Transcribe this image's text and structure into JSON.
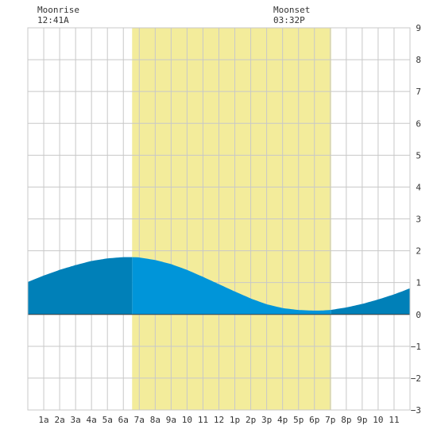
{
  "moon": {
    "rise_title": "Moonrise",
    "rise_time": "12:41A",
    "rise_hour": 0.68,
    "set_title": "Moonset",
    "set_time": "03:32P",
    "set_hour": 15.53
  },
  "chart_data": {
    "type": "area",
    "xlim": [
      0,
      24
    ],
    "ylim": [
      -3,
      9
    ],
    "x_ticks": [
      {
        "x": 1,
        "label": "1a"
      },
      {
        "x": 2,
        "label": "2a"
      },
      {
        "x": 3,
        "label": "3a"
      },
      {
        "x": 4,
        "label": "4a"
      },
      {
        "x": 5,
        "label": "5a"
      },
      {
        "x": 6,
        "label": "6a"
      },
      {
        "x": 7,
        "label": "7a"
      },
      {
        "x": 8,
        "label": "8a"
      },
      {
        "x": 9,
        "label": "9a"
      },
      {
        "x": 10,
        "label": "10"
      },
      {
        "x": 11,
        "label": "11"
      },
      {
        "x": 12,
        "label": "12"
      },
      {
        "x": 13,
        "label": "1p"
      },
      {
        "x": 14,
        "label": "2p"
      },
      {
        "x": 15,
        "label": "3p"
      },
      {
        "x": 16,
        "label": "4p"
      },
      {
        "x": 17,
        "label": "5p"
      },
      {
        "x": 18,
        "label": "6p"
      },
      {
        "x": 19,
        "label": "7p"
      },
      {
        "x": 20,
        "label": "8p"
      },
      {
        "x": 21,
        "label": "9p"
      },
      {
        "x": 22,
        "label": "10"
      },
      {
        "x": 23,
        "label": "11"
      }
    ],
    "y_ticks": [
      {
        "y": 9,
        "label": "9"
      },
      {
        "y": 8,
        "label": "8"
      },
      {
        "y": 7,
        "label": "7"
      },
      {
        "y": 6,
        "label": "6"
      },
      {
        "y": 5,
        "label": "5"
      },
      {
        "y": 4,
        "label": "4"
      },
      {
        "y": 3,
        "label": "3"
      },
      {
        "y": 2,
        "label": "2"
      },
      {
        "y": 1,
        "label": "1"
      },
      {
        "y": 0,
        "label": "0"
      },
      {
        "y": -1,
        "label": "−1"
      },
      {
        "y": -2,
        "label": "−2"
      },
      {
        "y": -3,
        "label": "−3"
      }
    ],
    "daylight": {
      "start": 6.55,
      "end": 19.05
    },
    "tide": {
      "high": {
        "x": 6.5,
        "y": 1.8
      },
      "low": {
        "x": 18.3,
        "y": 0.12
      },
      "x": [
        0,
        1,
        2,
        3,
        4,
        5,
        6,
        6.5,
        7,
        8,
        9,
        10,
        11,
        12,
        13,
        14,
        15,
        16,
        17,
        18,
        18.3,
        19,
        20,
        21,
        22,
        23,
        24
      ],
      "y": [
        1.02,
        1.22,
        1.4,
        1.55,
        1.68,
        1.76,
        1.8,
        1.8,
        1.79,
        1.71,
        1.58,
        1.4,
        1.18,
        0.95,
        0.72,
        0.5,
        0.32,
        0.2,
        0.14,
        0.12,
        0.12,
        0.14,
        0.22,
        0.33,
        0.47,
        0.63,
        0.82
      ]
    },
    "colors": {
      "tide_night": "#0080b8",
      "tide_day": "#0095d9",
      "daylight": "#f3ec9b",
      "grid": "#c8c8c8",
      "zero_line": "#444444",
      "text": "#333333"
    }
  }
}
